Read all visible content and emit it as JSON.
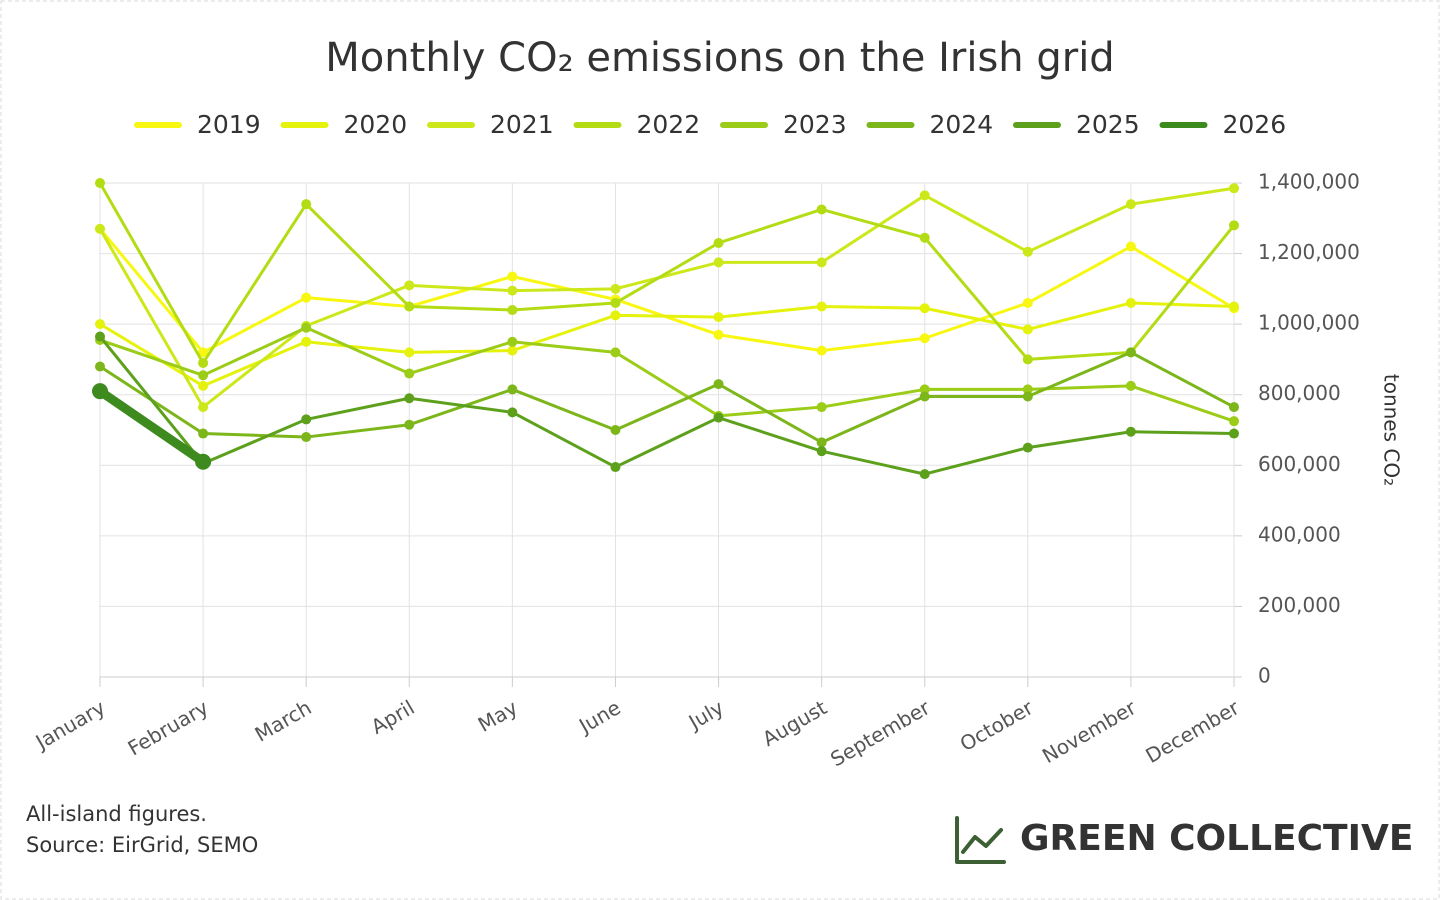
{
  "chart_data": {
    "type": "line",
    "title": "Monthly CO₂ emissions on the Irish grid",
    "categories": [
      "January",
      "February",
      "March",
      "April",
      "May",
      "June",
      "July",
      "August",
      "September",
      "October",
      "November",
      "December"
    ],
    "y_label": "tonnes CO₂",
    "y_axis_position": "right",
    "ylim": [
      0,
      1400000
    ],
    "yticks": [
      0,
      {
        "value": 200000,
        "label": "200,000"
      },
      {
        "value": 400000,
        "label": "400,000"
      },
      {
        "value": 600000,
        "label": "600,000"
      },
      {
        "value": 800000,
        "label": "800,000"
      },
      {
        "value": 1000000,
        "label": "1,000,000"
      },
      {
        "value": 1200000,
        "label": "1,200,000"
      },
      {
        "value": 1400000,
        "label": "1,400,000"
      }
    ],
    "grid": true,
    "series": [
      {
        "name": "2019",
        "color": "#f7f712",
        "values": [
          1270000,
          920000,
          1075000,
          1050000,
          1135000,
          1070000,
          970000,
          925000,
          960000,
          1060000,
          1220000,
          1045000
        ]
      },
      {
        "name": "2020",
        "color": "#e4f20c",
        "values": [
          1000000,
          825000,
          950000,
          920000,
          925000,
          1025000,
          1020000,
          1050000,
          1045000,
          985000,
          1060000,
          1050000
        ]
      },
      {
        "name": "2021",
        "color": "#cde81a",
        "values": [
          1270000,
          765000,
          995000,
          1110000,
          1095000,
          1100000,
          1175000,
          1175000,
          1365000,
          1205000,
          1340000,
          1385000
        ]
      },
      {
        "name": "2022",
        "color": "#b4dc14",
        "values": [
          1400000,
          890000,
          1340000,
          1050000,
          1040000,
          1060000,
          1230000,
          1325000,
          1245000,
          900000,
          920000,
          1280000
        ]
      },
      {
        "name": "2023",
        "color": "#9bcc18",
        "values": [
          955000,
          855000,
          990000,
          860000,
          950000,
          920000,
          740000,
          765000,
          815000,
          815000,
          825000,
          725000
        ]
      },
      {
        "name": "2024",
        "color": "#7cb61a",
        "values": [
          880000,
          690000,
          680000,
          715000,
          815000,
          700000,
          830000,
          665000,
          795000,
          795000,
          920000,
          765000
        ]
      },
      {
        "name": "2025",
        "color": "#5ca01c",
        "values": [
          965000,
          605000,
          730000,
          790000,
          750000,
          595000,
          735000,
          640000,
          575000,
          650000,
          695000,
          690000
        ]
      },
      {
        "name": "2026",
        "color": "#3d8b1e",
        "values": [
          810000,
          610000,
          null,
          null,
          null,
          null,
          null,
          null,
          null,
          null,
          null,
          null
        ]
      }
    ]
  },
  "footnote": [
    "All-island figures.",
    "Source: EirGrid, SEMO"
  ],
  "brand": "GREEN COLLECTIVE"
}
